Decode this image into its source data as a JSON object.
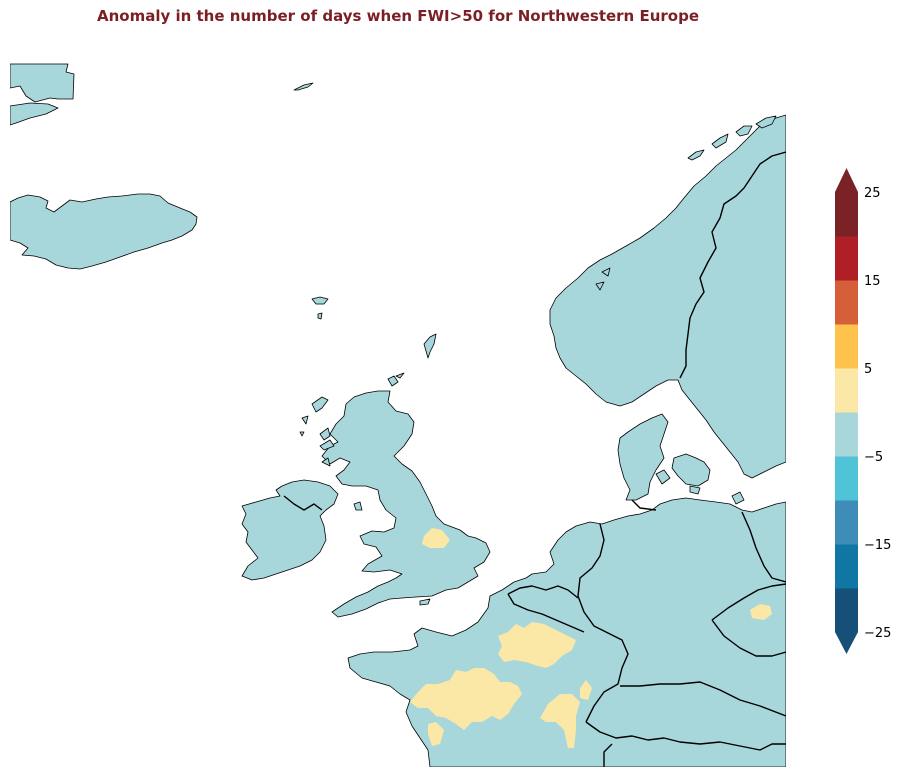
{
  "title": "Anomaly in the number of days when FWI>50 for Northwestern Europe",
  "colors": {
    "title": "#7b1f24",
    "land_base": "#a8d7db",
    "anomaly_positive_small": "#fce8a6",
    "coastline": "#000000",
    "background": "#ffffff"
  },
  "colorbar": {
    "min": -25,
    "max": 25,
    "extend": "both",
    "bins": [
      {
        "from": -25,
        "to": -20,
        "color": "#164f78"
      },
      {
        "from": -20,
        "to": -15,
        "color": "#1076a3"
      },
      {
        "from": -15,
        "to": -10,
        "color": "#3e8db9"
      },
      {
        "from": -10,
        "to": -5,
        "color": "#51c3d6"
      },
      {
        "from": -5,
        "to": 0,
        "color": "#a8d7db"
      },
      {
        "from": 0,
        "to": 5,
        "color": "#fce8a6"
      },
      {
        "from": 5,
        "to": 10,
        "color": "#ffc34d"
      },
      {
        "from": 10,
        "to": 15,
        "color": "#d45f38"
      },
      {
        "from": 15,
        "to": 20,
        "color": "#b01f25"
      },
      {
        "from": 20,
        "to": 25,
        "color": "#7b2226"
      }
    ],
    "ticks": [
      {
        "value": 25,
        "label": "25"
      },
      {
        "value": 15,
        "label": "15"
      },
      {
        "value": 5,
        "label": "5"
      },
      {
        "value": -5,
        "label": "−5"
      },
      {
        "value": -15,
        "label": "−15"
      },
      {
        "value": -25,
        "label": "−25"
      }
    ]
  }
}
